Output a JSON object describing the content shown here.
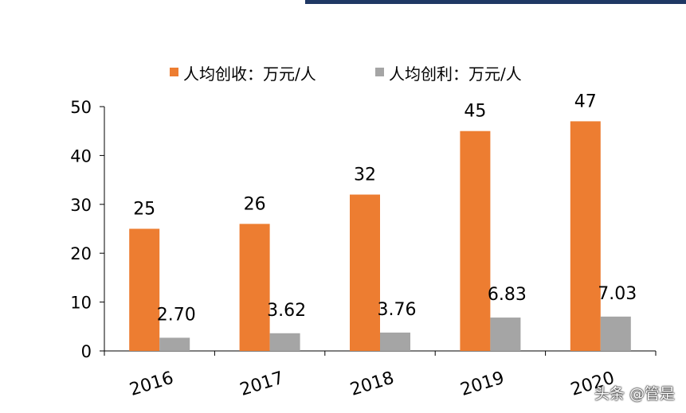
{
  "chart_data": {
    "type": "bar",
    "categories": [
      "2016",
      "2017",
      "2018",
      "2019",
      "2020"
    ],
    "series": [
      {
        "name": "人均创收：万元/人",
        "values": [
          25,
          26,
          32,
          45,
          47
        ],
        "labels": [
          "25",
          "26",
          "32",
          "45",
          "47"
        ],
        "color": "#ed7d31"
      },
      {
        "name": "人均创利：万元/人",
        "values": [
          2.7,
          3.62,
          3.76,
          6.83,
          7.03
        ],
        "labels": [
          "2.70",
          "3.62",
          "3.76",
          "6.83",
          "7.03"
        ],
        "color": "#a5a5a5"
      }
    ],
    "ylim": [
      0,
      50
    ],
    "yticks": [
      "0",
      "10",
      "20",
      "30",
      "40",
      "50"
    ],
    "xlabel": "",
    "ylabel": "",
    "legend_position": "top",
    "grid": false
  },
  "colors": {
    "header_bar": "#1f3864"
  },
  "watermark": "头条 @管是"
}
